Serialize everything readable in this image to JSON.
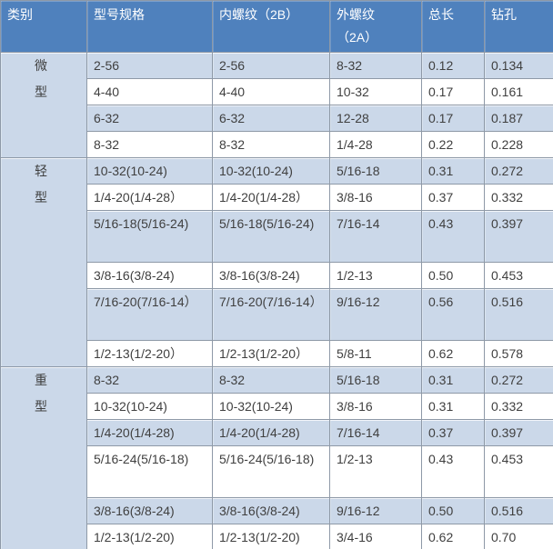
{
  "colors": {
    "header_bg": "#4F81BD",
    "header_text": "#FFFFFF",
    "row_light_blue": "#CBD8E9",
    "row_white": "#FFFFFF",
    "border": "#8E99A7",
    "outer_border": "#6A7582",
    "text": "#3F3F3F"
  },
  "table": {
    "columns": [
      {
        "label": "类别"
      },
      {
        "label": "型号规格"
      },
      {
        "label": "内螺纹（2B）"
      },
      {
        "label": "外螺纹\n（2A）"
      },
      {
        "label": "总长"
      },
      {
        "label": "钻孔"
      }
    ],
    "sections": [
      {
        "category": "微型",
        "rows": [
          {
            "cells": [
              "2-56",
              "2-56",
              "8-32",
              "0.12",
              "0.134"
            ]
          },
          {
            "cells": [
              "4-40",
              "4-40",
              "10-32",
              "0.17",
              "0.161"
            ]
          },
          {
            "cells": [
              "6-32",
              "6-32",
              "12-28",
              "0.17",
              "0.187"
            ]
          },
          {
            "cells": [
              "8-32",
              "8-32",
              "1/4-28",
              "0.22",
              "0.228"
            ]
          }
        ]
      },
      {
        "category": "轻型",
        "rows": [
          {
            "cells": [
              "10-32(10-24)",
              "10-32(10-24)",
              "5/16-18",
              "0.31",
              "0.272"
            ]
          },
          {
            "cells": [
              "1/4-20(1/4-28）",
              "1/4-20(1/4-28）",
              "3/8-16",
              "0.37",
              "0.332"
            ]
          },
          {
            "cells": [
              "5/16-18(5/16-24)",
              "5/16-18(5/16-24)",
              "7/16-14",
              "0.43",
              "0.397"
            ],
            "tall": true
          },
          {
            "cells": [
              "3/8-16(3/8-24)",
              "3/8-16(3/8-24)",
              "1/2-13",
              "0.50",
              "0.453"
            ]
          },
          {
            "cells": [
              "7/16-20(7/16-14）",
              "7/16-20(7/16-14）",
              "9/16-12",
              "0.56",
              "0.516"
            ],
            "tall": true
          },
          {
            "cells": [
              "1/2-13(1/2-20）",
              "1/2-13(1/2-20）",
              "5/8-11",
              "0.62",
              "0.578"
            ]
          }
        ]
      },
      {
        "category": "重型",
        "rows": [
          {
            "cells": [
              "8-32",
              "8-32",
              "5/16-18",
              "0.31",
              "0.272"
            ]
          },
          {
            "cells": [
              "10-32(10-24)",
              "10-32(10-24)",
              "3/8-16",
              "0.31",
              "0.332"
            ]
          },
          {
            "cells": [
              "1/4-20(1/4-28)",
              "1/4-20(1/4-28)",
              "7/16-14",
              "0.37",
              "0.397"
            ]
          },
          {
            "cells": [
              "5/16-24(5/16-18)",
              "5/16-24(5/16-18)",
              "1/2-13",
              "0.43",
              "0.453"
            ],
            "tall": true
          },
          {
            "cells": [
              "3/8-16(3/8-24)",
              "3/8-16(3/8-24)",
              "9/16-12",
              "0.50",
              "0.516"
            ]
          },
          {
            "cells": [
              "1/2-13(1/2-20)",
              "1/2-13(1/2-20)",
              "3/4-16",
              "0.62",
              "0.70"
            ]
          }
        ]
      }
    ]
  }
}
